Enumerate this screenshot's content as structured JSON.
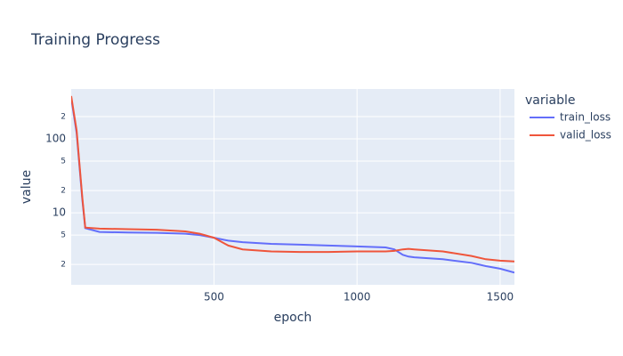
{
  "chart_data": {
    "type": "line",
    "title": "Training Progress",
    "x_label": "epoch",
    "y_label": "value",
    "legend_title": "variable",
    "legend": "right",
    "log_y": true,
    "grid": true,
    "x": [
      1,
      20,
      40,
      50,
      100,
      200,
      300,
      400,
      450,
      500,
      550,
      600,
      700,
      800,
      900,
      1000,
      1100,
      1130,
      1160,
      1180,
      1200,
      1300,
      1400,
      1450,
      1500,
      1550
    ],
    "series": [
      {
        "name": "train_loss",
        "color": "#636efa",
        "values": [
          358,
          120,
          15,
          6.2,
          5.5,
          5.4,
          5.35,
          5.2,
          5.0,
          4.6,
          4.2,
          4.0,
          3.8,
          3.7,
          3.6,
          3.5,
          3.4,
          3.2,
          2.7,
          2.55,
          2.5,
          2.35,
          2.1,
          1.9,
          1.75,
          1.55
        ]
      },
      {
        "name": "valid_loss",
        "color": "#EF553B",
        "values": [
          380,
          130,
          16,
          6.3,
          6.1,
          6.0,
          5.9,
          5.6,
          5.2,
          4.6,
          3.6,
          3.2,
          3.0,
          2.95,
          2.95,
          3.0,
          3.0,
          3.05,
          3.2,
          3.25,
          3.2,
          3.0,
          2.6,
          2.35,
          2.25,
          2.2
        ]
      }
    ],
    "xlim": [
      1,
      1550
    ],
    "xticks": [
      500,
      1000,
      1500
    ],
    "ylim": [
      1.06,
      473
    ],
    "yticks": [
      {
        "value": 2,
        "label": "2"
      },
      {
        "value": 5,
        "label": "5"
      },
      10,
      {
        "value": 20,
        "label": "2"
      },
      {
        "value": 50,
        "label": "5"
      },
      100,
      {
        "value": 200,
        "label": "2"
      }
    ]
  }
}
